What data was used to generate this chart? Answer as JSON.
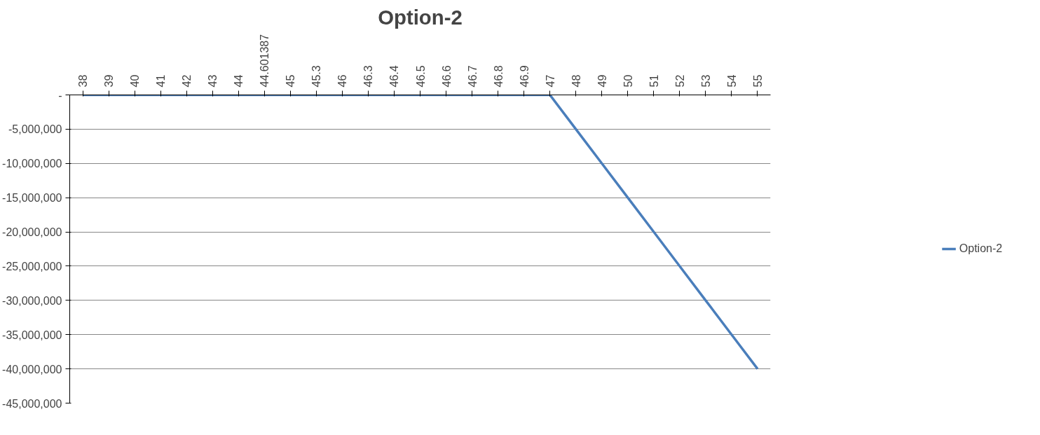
{
  "chart_data": {
    "type": "line",
    "title": "Option-2",
    "categories": [
      "38",
      "39",
      "40",
      "41",
      "42",
      "43",
      "44",
      "44.601387",
      "45",
      "45.3",
      "46",
      "46.3",
      "46.4",
      "46.5",
      "46.6",
      "46.7",
      "46.8",
      "46.9",
      "47",
      "48",
      "49",
      "50",
      "51",
      "52",
      "53",
      "54",
      "55"
    ],
    "series": [
      {
        "name": "Option-2",
        "color": "#4a7ebb",
        "values": [
          0,
          0,
          0,
          0,
          0,
          0,
          0,
          0,
          0,
          0,
          0,
          0,
          0,
          0,
          0,
          0,
          0,
          0,
          0,
          -5000000,
          -10000000,
          -15000000,
          -20000000,
          -25000000,
          -30000000,
          -35000000,
          -40000000
        ]
      }
    ],
    "ylim": [
      -45000000,
      0
    ],
    "yticks": [
      {
        "value": 0,
        "label": "-"
      },
      {
        "value": -5000000,
        "label": "-5,000,000"
      },
      {
        "value": -10000000,
        "label": "-10,000,000"
      },
      {
        "value": -15000000,
        "label": "-15,000,000"
      },
      {
        "value": -20000000,
        "label": "-20,000,000"
      },
      {
        "value": -25000000,
        "label": "-25,000,000"
      },
      {
        "value": -30000000,
        "label": "-30,000,000"
      },
      {
        "value": -35000000,
        "label": "-35,000,000"
      },
      {
        "value": -40000000,
        "label": "-40,000,000"
      },
      {
        "value": -45000000,
        "label": "-45,000,000"
      }
    ],
    "grid": "y",
    "legend": "right",
    "marker": "none",
    "line_style": "solid"
  }
}
